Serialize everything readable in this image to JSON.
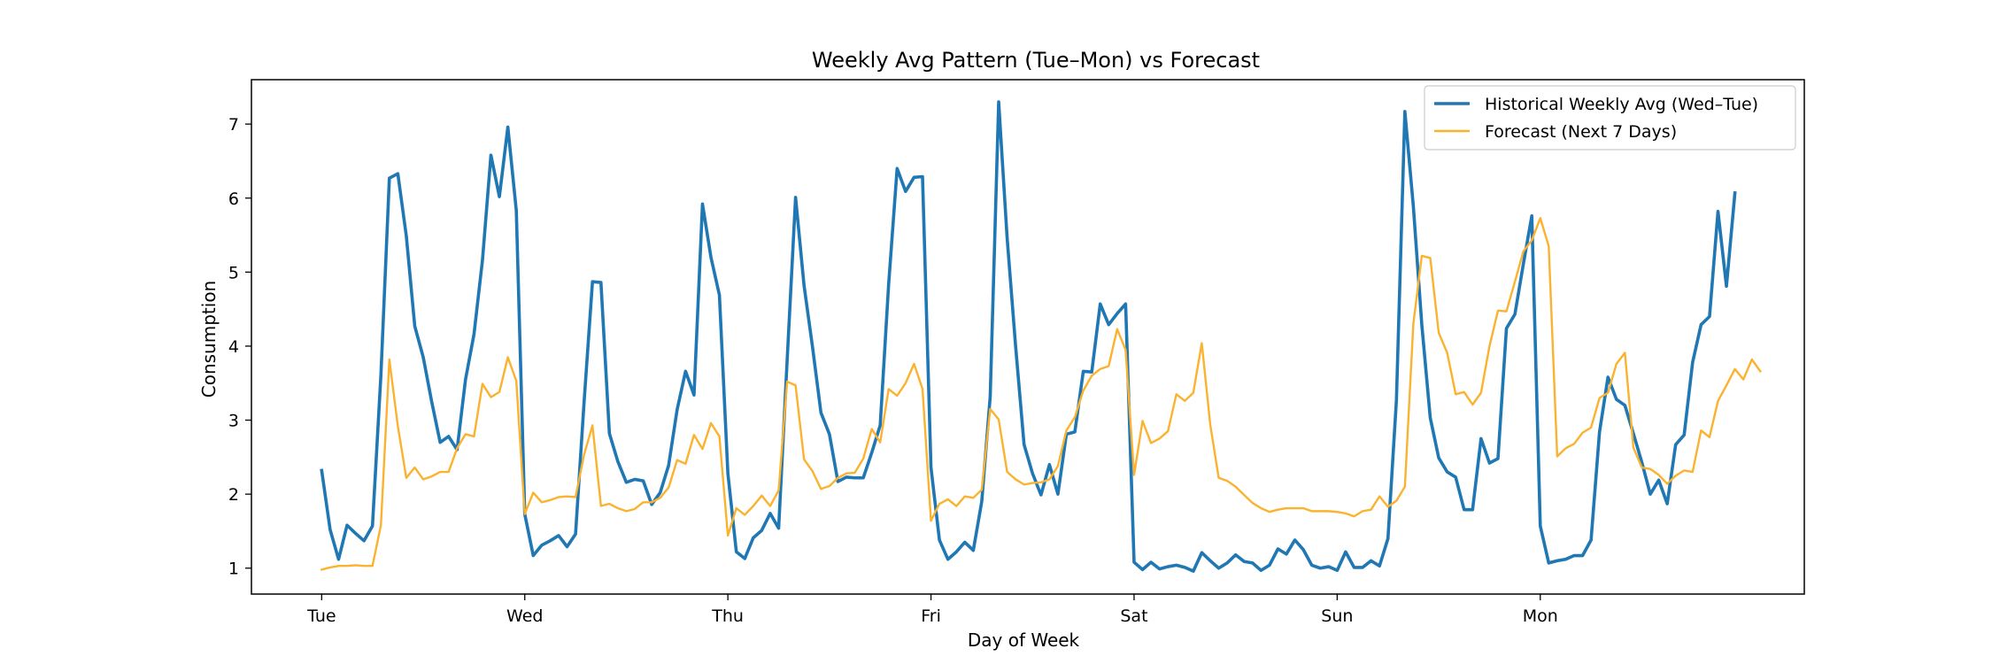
{
  "chart_data": {
    "type": "line",
    "title": "Weekly Avg Pattern (Tue–Mon) vs Forecast",
    "xlabel": "Day of Week",
    "ylabel": "Consumption",
    "x_ticks": [
      "Tue",
      "Wed",
      "Thu",
      "Fri",
      "Sat",
      "Sun",
      "Mon"
    ],
    "hours_per_day": 24,
    "xlim": [
      -8.3,
      175.2
    ],
    "ylim": [
      0.65,
      7.6
    ],
    "y_ticks": [
      1,
      2,
      3,
      4,
      5,
      6,
      7
    ],
    "grid": false,
    "legend_position": "top-right",
    "series": [
      {
        "name": "Historical Weekly Avg (Wed–Tue)",
        "color": "#1f77b4",
        "values": [
          2.32,
          1.52,
          1.12,
          1.58,
          1.47,
          1.37,
          1.57,
          3.61,
          6.27,
          6.33,
          5.49,
          4.27,
          3.85,
          3.25,
          2.7,
          2.78,
          2.6,
          3.55,
          4.16,
          5.16,
          6.58,
          6.02,
          6.96,
          5.83,
          1.73,
          1.17,
          1.31,
          1.37,
          1.44,
          1.29,
          1.46,
          3.23,
          4.87,
          4.86,
          2.82,
          2.44,
          2.16,
          2.2,
          2.18,
          1.86,
          2.02,
          2.39,
          3.14,
          3.66,
          3.34,
          5.92,
          5.2,
          4.69,
          2.28,
          1.22,
          1.13,
          1.41,
          1.51,
          1.74,
          1.54,
          3.8,
          6.01,
          4.82,
          3.99,
          3.1,
          2.81,
          2.17,
          2.23,
          2.22,
          2.22,
          2.56,
          2.93,
          4.84,
          6.4,
          6.09,
          6.28,
          6.29,
          2.36,
          1.38,
          1.12,
          1.22,
          1.35,
          1.24,
          1.9,
          3.32,
          7.3,
          5.46,
          4.0,
          2.67,
          2.28,
          1.99,
          2.4,
          2.0,
          2.81,
          2.84,
          3.66,
          3.65,
          4.57,
          4.29,
          4.44,
          4.57,
          1.08,
          0.98,
          1.08,
          0.99,
          1.02,
          1.04,
          1.01,
          0.96,
          1.21,
          1.1,
          1.0,
          1.07,
          1.18,
          1.09,
          1.07,
          0.97,
          1.04,
          1.26,
          1.19,
          1.38,
          1.25,
          1.04,
          1.0,
          1.02,
          0.97,
          1.22,
          1.01,
          1.01,
          1.1,
          1.03,
          1.4,
          3.27,
          7.17,
          5.89,
          4.29,
          3.03,
          2.49,
          2.3,
          2.23,
          1.79,
          1.79,
          2.75,
          2.42,
          2.48,
          4.24,
          4.43,
          5.11,
          5.76,
          1.57,
          1.07,
          1.1,
          1.12,
          1.17,
          1.17,
          1.38,
          2.84,
          3.58,
          3.28,
          3.2,
          2.82,
          2.43,
          2.0,
          2.19,
          1.87,
          2.67,
          2.8,
          3.78,
          4.29,
          4.4,
          5.82,
          4.81,
          6.07
        ]
      },
      {
        "name": "Forecast (Next 7 Days)",
        "color": "#fbb22e",
        "values": [
          0.98,
          1.01,
          1.03,
          1.03,
          1.04,
          1.03,
          1.03,
          1.58,
          3.82,
          2.92,
          2.22,
          2.36,
          2.2,
          2.24,
          2.3,
          2.3,
          2.62,
          2.81,
          2.78,
          3.49,
          3.31,
          3.38,
          3.85,
          3.53,
          1.73,
          2.02,
          1.89,
          1.92,
          1.96,
          1.97,
          1.96,
          2.53,
          2.93,
          1.84,
          1.87,
          1.81,
          1.77,
          1.8,
          1.89,
          1.89,
          1.95,
          2.09,
          2.46,
          2.41,
          2.8,
          2.61,
          2.96,
          2.78,
          1.44,
          1.81,
          1.72,
          1.84,
          1.98,
          1.84,
          2.05,
          3.52,
          3.47,
          2.47,
          2.31,
          2.07,
          2.11,
          2.22,
          2.28,
          2.29,
          2.48,
          2.88,
          2.7,
          3.42,
          3.33,
          3.5,
          3.76,
          3.42,
          1.64,
          1.87,
          1.93,
          1.84,
          1.97,
          1.95,
          2.06,
          3.15,
          3.01,
          2.3,
          2.2,
          2.13,
          2.15,
          2.16,
          2.2,
          2.38,
          2.86,
          3.04,
          3.4,
          3.6,
          3.69,
          3.73,
          4.23,
          3.95,
          2.26,
          2.99,
          2.69,
          2.75,
          2.85,
          3.35,
          3.26,
          3.37,
          4.04,
          2.94,
          2.22,
          2.18,
          2.1,
          1.99,
          1.88,
          1.81,
          1.76,
          1.79,
          1.81,
          1.81,
          1.81,
          1.77,
          1.77,
          1.77,
          1.76,
          1.74,
          1.7,
          1.77,
          1.79,
          1.97,
          1.83,
          1.91,
          2.1,
          4.3,
          5.22,
          5.19,
          4.18,
          3.91,
          3.35,
          3.38,
          3.21,
          3.37,
          4.0,
          4.48,
          4.47,
          4.87,
          5.28,
          5.43,
          5.73,
          5.35,
          2.51,
          2.62,
          2.68,
          2.83,
          2.9,
          3.3,
          3.37,
          3.76,
          3.91,
          2.63,
          2.36,
          2.34,
          2.26,
          2.14,
          2.25,
          2.32,
          2.3,
          2.86,
          2.77,
          3.26,
          3.47,
          3.69,
          3.55,
          3.82,
          3.66
        ]
      }
    ]
  }
}
